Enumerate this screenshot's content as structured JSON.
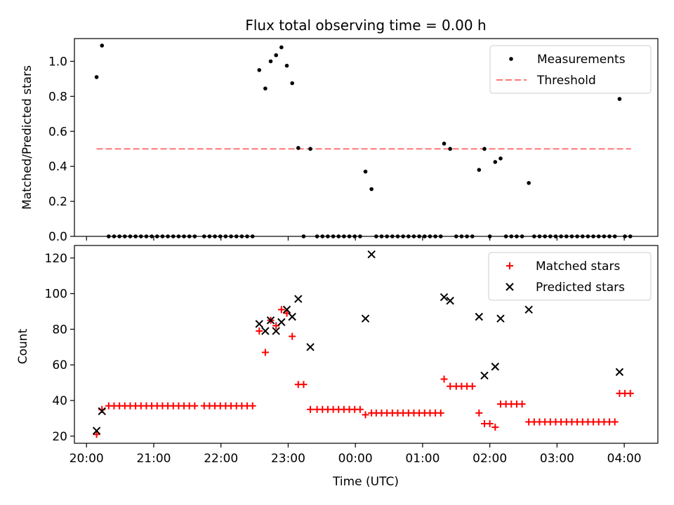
{
  "figure": {
    "title": "Flux total observing time = 0.00 h",
    "xlabel": "Time (UTC)",
    "x_ticks": [
      "20:00",
      "21:00",
      "22:00",
      "23:00",
      "00:00",
      "01:00",
      "02:00",
      "03:00",
      "04:00"
    ],
    "x_tick_hours": [
      0,
      1,
      2,
      3,
      4,
      5,
      6,
      7,
      8
    ],
    "x_range_hours": [
      -0.18,
      8.5
    ]
  },
  "chart_data": [
    {
      "type": "scatter",
      "ylabel": "Matched/Predicted stars",
      "ylim": [
        0,
        1.13
      ],
      "yticks": [
        "0.0",
        "0.2",
        "0.4",
        "0.6",
        "0.8",
        "1.0"
      ],
      "ytick_values": [
        0,
        0.2,
        0.4,
        0.6,
        0.8,
        1.0
      ],
      "legend_position": "top-right",
      "legend": {
        "measurements": "Measurements",
        "threshold": "Threshold"
      },
      "threshold": {
        "value": 0.5,
        "x_start": 0.15,
        "x_end": 8.1,
        "color": "#ff7777"
      },
      "measurements_color": "#000000",
      "measurements": [
        [
          0.15,
          0.91
        ],
        [
          0.23,
          1.09
        ],
        [
          0.33,
          0
        ],
        [
          0.41,
          0
        ],
        [
          0.49,
          0
        ],
        [
          0.57,
          0
        ],
        [
          0.65,
          0
        ],
        [
          0.73,
          0
        ],
        [
          0.81,
          0
        ],
        [
          0.89,
          0
        ],
        [
          0.97,
          0
        ],
        [
          1.05,
          0
        ],
        [
          1.13,
          0
        ],
        [
          1.21,
          0
        ],
        [
          1.29,
          0
        ],
        [
          1.37,
          0
        ],
        [
          1.45,
          0
        ],
        [
          1.53,
          0
        ],
        [
          1.61,
          0
        ],
        [
          1.75,
          0
        ],
        [
          1.83,
          0
        ],
        [
          1.91,
          0
        ],
        [
          1.99,
          0
        ],
        [
          2.07,
          0
        ],
        [
          2.15,
          0
        ],
        [
          2.23,
          0
        ],
        [
          2.31,
          0
        ],
        [
          2.39,
          0
        ],
        [
          2.47,
          0
        ],
        [
          2.57,
          0.95
        ],
        [
          2.66,
          0.845
        ],
        [
          2.74,
          1.0
        ],
        [
          2.82,
          1.035
        ],
        [
          2.9,
          1.08
        ],
        [
          2.98,
          0.975
        ],
        [
          3.06,
          0.875
        ],
        [
          3.15,
          0.505
        ],
        [
          3.23,
          0
        ],
        [
          3.33,
          0.5
        ],
        [
          3.43,
          0
        ],
        [
          3.51,
          0
        ],
        [
          3.59,
          0
        ],
        [
          3.67,
          0
        ],
        [
          3.75,
          0
        ],
        [
          3.83,
          0
        ],
        [
          3.91,
          0
        ],
        [
          3.99,
          0
        ],
        [
          4.07,
          0
        ],
        [
          4.15,
          0.37
        ],
        [
          4.24,
          0.27
        ],
        [
          4.31,
          0
        ],
        [
          4.39,
          0
        ],
        [
          4.47,
          0
        ],
        [
          4.55,
          0
        ],
        [
          4.63,
          0
        ],
        [
          4.71,
          0
        ],
        [
          4.79,
          0
        ],
        [
          4.87,
          0
        ],
        [
          4.95,
          0
        ],
        [
          5.03,
          0
        ],
        [
          5.11,
          0
        ],
        [
          5.19,
          0
        ],
        [
          5.27,
          0
        ],
        [
          5.32,
          0.53
        ],
        [
          5.41,
          0.5
        ],
        [
          5.5,
          0
        ],
        [
          5.58,
          0
        ],
        [
          5.66,
          0
        ],
        [
          5.74,
          0
        ],
        [
          5.84,
          0.38
        ],
        [
          5.92,
          0.5
        ],
        [
          6.0,
          0
        ],
        [
          6.08,
          0.425
        ],
        [
          6.16,
          0.445
        ],
        [
          6.24,
          0
        ],
        [
          6.32,
          0
        ],
        [
          6.4,
          0
        ],
        [
          6.48,
          0
        ],
        [
          6.58,
          0.305
        ],
        [
          6.66,
          0
        ],
        [
          6.74,
          0
        ],
        [
          6.82,
          0
        ],
        [
          6.9,
          0
        ],
        [
          6.98,
          0
        ],
        [
          7.06,
          0
        ],
        [
          7.14,
          0
        ],
        [
          7.22,
          0
        ],
        [
          7.3,
          0
        ],
        [
          7.38,
          0
        ],
        [
          7.46,
          0
        ],
        [
          7.54,
          0
        ],
        [
          7.62,
          0
        ],
        [
          7.7,
          0
        ],
        [
          7.78,
          0
        ],
        [
          7.86,
          0
        ],
        [
          7.93,
          0.785
        ],
        [
          8.01,
          0
        ],
        [
          8.09,
          0
        ]
      ]
    },
    {
      "type": "scatter",
      "ylabel": "Count",
      "ylim": [
        16,
        127
      ],
      "yticks": [
        "20",
        "40",
        "60",
        "80",
        "100",
        "120"
      ],
      "ytick_values": [
        20,
        40,
        60,
        80,
        100,
        120
      ],
      "legend_position": "top-right",
      "series": [
        {
          "name": "Matched stars",
          "marker": "plus",
          "color": "#ff0000",
          "points": [
            [
              0.15,
              21
            ],
            [
              0.23,
              35
            ],
            [
              0.33,
              37
            ],
            [
              0.41,
              37
            ],
            [
              0.49,
              37
            ],
            [
              0.57,
              37
            ],
            [
              0.65,
              37
            ],
            [
              0.73,
              37
            ],
            [
              0.81,
              37
            ],
            [
              0.89,
              37
            ],
            [
              0.97,
              37
            ],
            [
              1.05,
              37
            ],
            [
              1.13,
              37
            ],
            [
              1.21,
              37
            ],
            [
              1.29,
              37
            ],
            [
              1.37,
              37
            ],
            [
              1.45,
              37
            ],
            [
              1.53,
              37
            ],
            [
              1.61,
              37
            ],
            [
              1.75,
              37
            ],
            [
              1.83,
              37
            ],
            [
              1.91,
              37
            ],
            [
              1.99,
              37
            ],
            [
              2.07,
              37
            ],
            [
              2.15,
              37
            ],
            [
              2.23,
              37
            ],
            [
              2.31,
              37
            ],
            [
              2.39,
              37
            ],
            [
              2.47,
              37
            ],
            [
              2.57,
              79
            ],
            [
              2.66,
              67
            ],
            [
              2.74,
              85
            ],
            [
              2.82,
              82
            ],
            [
              2.9,
              91
            ],
            [
              2.98,
              89
            ],
            [
              3.06,
              76
            ],
            [
              3.15,
              49
            ],
            [
              3.23,
              49
            ],
            [
              3.33,
              35
            ],
            [
              3.43,
              35
            ],
            [
              3.51,
              35
            ],
            [
              3.59,
              35
            ],
            [
              3.67,
              35
            ],
            [
              3.75,
              35
            ],
            [
              3.83,
              35
            ],
            [
              3.91,
              35
            ],
            [
              3.99,
              35
            ],
            [
              4.07,
              35
            ],
            [
              4.15,
              32
            ],
            [
              4.24,
              33
            ],
            [
              4.31,
              33
            ],
            [
              4.39,
              33
            ],
            [
              4.47,
              33
            ],
            [
              4.55,
              33
            ],
            [
              4.63,
              33
            ],
            [
              4.71,
              33
            ],
            [
              4.79,
              33
            ],
            [
              4.87,
              33
            ],
            [
              4.95,
              33
            ],
            [
              5.03,
              33
            ],
            [
              5.11,
              33
            ],
            [
              5.19,
              33
            ],
            [
              5.27,
              33
            ],
            [
              5.32,
              52
            ],
            [
              5.41,
              48
            ],
            [
              5.5,
              48
            ],
            [
              5.58,
              48
            ],
            [
              5.66,
              48
            ],
            [
              5.74,
              48
            ],
            [
              5.84,
              33
            ],
            [
              5.92,
              27
            ],
            [
              6.0,
              27
            ],
            [
              6.08,
              25
            ],
            [
              6.16,
              38
            ],
            [
              6.24,
              38
            ],
            [
              6.32,
              38
            ],
            [
              6.4,
              38
            ],
            [
              6.48,
              38
            ],
            [
              6.58,
              28
            ],
            [
              6.66,
              28
            ],
            [
              6.74,
              28
            ],
            [
              6.82,
              28
            ],
            [
              6.9,
              28
            ],
            [
              6.98,
              28
            ],
            [
              7.06,
              28
            ],
            [
              7.14,
              28
            ],
            [
              7.22,
              28
            ],
            [
              7.3,
              28
            ],
            [
              7.38,
              28
            ],
            [
              7.46,
              28
            ],
            [
              7.54,
              28
            ],
            [
              7.62,
              28
            ],
            [
              7.7,
              28
            ],
            [
              7.78,
              28
            ],
            [
              7.86,
              28
            ],
            [
              7.93,
              44
            ],
            [
              8.01,
              44
            ],
            [
              8.09,
              44
            ]
          ]
        },
        {
          "name": "Predicted stars",
          "marker": "x",
          "color": "#000000",
          "points": [
            [
              0.15,
              23
            ],
            [
              0.23,
              34
            ],
            [
              2.57,
              83
            ],
            [
              2.66,
              79
            ],
            [
              2.74,
              85
            ],
            [
              2.82,
              79
            ],
            [
              2.9,
              84
            ],
            [
              2.98,
              91
            ],
            [
              3.06,
              87
            ],
            [
              3.15,
              97
            ],
            [
              3.33,
              70
            ],
            [
              4.15,
              86
            ],
            [
              4.24,
              122
            ],
            [
              5.32,
              98
            ],
            [
              5.41,
              96
            ],
            [
              5.84,
              87
            ],
            [
              5.92,
              54
            ],
            [
              6.08,
              59
            ],
            [
              6.16,
              86
            ],
            [
              6.58,
              91
            ],
            [
              7.93,
              56
            ]
          ]
        }
      ]
    }
  ]
}
